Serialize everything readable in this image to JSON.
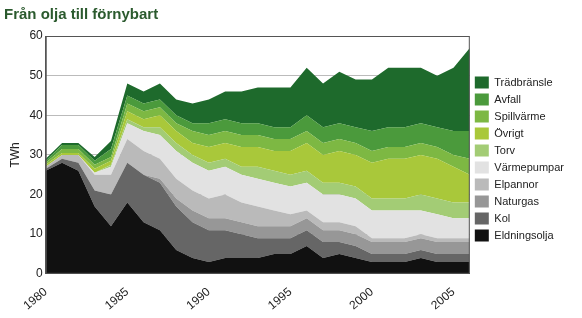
{
  "chart_data": {
    "type": "area",
    "title": "Från olja till förnybart",
    "y_label": "TWh",
    "x": [
      1980,
      1981,
      1982,
      1983,
      1984,
      1985,
      1986,
      1987,
      1988,
      1989,
      1990,
      1991,
      1992,
      1993,
      1994,
      1995,
      1996,
      1997,
      1998,
      1999,
      2000,
      2001,
      2002,
      2003,
      2004,
      2005,
      2006
    ],
    "xlim": [
      1980,
      2006
    ],
    "xticks": [
      1980,
      1985,
      1990,
      1995,
      2000,
      2005
    ],
    "ylim": [
      0,
      60
    ],
    "yticks": [
      0,
      10,
      20,
      30,
      40,
      50,
      60
    ],
    "stacked": true,
    "grid": true,
    "legend": "right",
    "series": [
      {
        "name": "Trädbränsle",
        "color": "#1e6a2c",
        "values": [
          0.5,
          0.5,
          0.5,
          1,
          2,
          3,
          3,
          4,
          4,
          5,
          6,
          7,
          8,
          9,
          10,
          10,
          12,
          11,
          13,
          12,
          13,
          15,
          15,
          14,
          13,
          16,
          21
        ]
      },
      {
        "name": "Avfall",
        "color": "#4b9a3c",
        "values": [
          0.5,
          1,
          1,
          1,
          2,
          2,
          2,
          2,
          2,
          2,
          3,
          3,
          3,
          3,
          3,
          3,
          4,
          4,
          4,
          4,
          5,
          5,
          5,
          5,
          5,
          6,
          7
        ]
      },
      {
        "name": "Spillvärme",
        "color": "#7db843",
        "values": [
          0.5,
          1,
          1,
          1,
          1,
          2,
          2,
          2,
          2,
          3,
          3,
          3,
          3,
          3,
          3,
          3,
          3,
          3,
          3,
          3,
          3,
          3,
          3,
          3,
          3,
          3,
          4
        ]
      },
      {
        "name": "Övrigt",
        "color": "#a9c83a",
        "values": [
          0.5,
          0.5,
          0.5,
          1,
          1,
          2,
          2,
          3,
          3,
          3,
          4,
          4,
          5,
          5,
          5,
          6,
          7,
          7,
          8,
          8,
          9,
          10,
          10,
          10,
          10,
          9,
          7
        ]
      },
      {
        "name": "Torv",
        "color": "#a3cc75",
        "values": [
          0,
          0,
          0,
          0,
          0.5,
          1,
          1,
          2,
          2,
          2,
          2,
          2,
          2,
          3,
          3,
          3,
          3,
          3,
          3,
          3,
          3,
          3,
          3,
          4,
          4,
          4,
          4
        ]
      },
      {
        "name": "Värmepumpar",
        "color": "#e2e2e2",
        "values": [
          0,
          0,
          0,
          0.5,
          2,
          4,
          5,
          6,
          7,
          7,
          7,
          7,
          7,
          7,
          7,
          7,
          7,
          7,
          7,
          7,
          7,
          7,
          7,
          6,
          6,
          5,
          5
        ]
      },
      {
        "name": "Elpannor",
        "color": "#bababa",
        "values": [
          0.5,
          1,
          2,
          4,
          5,
          6,
          6,
          5,
          5,
          5,
          5,
          6,
          5,
          5,
          4,
          3,
          2,
          2,
          2,
          2,
          1,
          1,
          1,
          1,
          1,
          1,
          1
        ]
      },
      {
        "name": "Naturgas",
        "color": "#979797",
        "values": [
          0,
          0,
          0,
          0,
          0,
          0,
          0,
          1,
          2,
          3,
          3,
          3,
          3,
          3,
          3,
          3,
          3,
          3,
          3,
          3,
          3,
          3,
          3,
          3,
          3,
          3,
          3
        ]
      },
      {
        "name": "Kol",
        "color": "#666666",
        "values": [
          0.5,
          1,
          2,
          4,
          8,
          10,
          12,
          12,
          11,
          9,
          8,
          7,
          6,
          5,
          4,
          4,
          4,
          4,
          3,
          3,
          2,
          2,
          2,
          2,
          2,
          2,
          2
        ]
      },
      {
        "name": "Eldningsolja",
        "color": "#111111",
        "values": [
          26,
          28,
          26,
          17,
          12,
          18,
          13,
          11,
          6,
          4,
          3,
          4,
          4,
          4,
          5,
          5,
          7,
          4,
          5,
          4,
          3,
          3,
          3,
          4,
          3,
          3,
          3
        ]
      }
    ]
  }
}
